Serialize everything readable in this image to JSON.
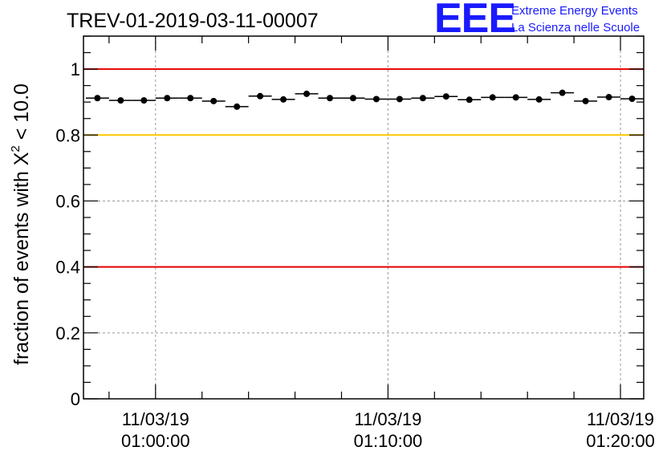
{
  "chart_data": {
    "type": "scatter",
    "title": "TREV-01-2019-03-11-00007",
    "ylabel_prefix": "fraction of events with ",
    "ylabel_chi": "X",
    "ylabel_sup": "2",
    "ylabel_suffix": " < 10.0",
    "xlabel": "",
    "ylim": [
      0,
      1.1
    ],
    "xlim_minutes": [
      -3.1,
      21.0
    ],
    "y_ticks": [
      {
        "value": 0,
        "label": "0"
      },
      {
        "value": 0.2,
        "label": "0.2"
      },
      {
        "value": 0.4,
        "label": "0.4"
      },
      {
        "value": 0.6,
        "label": "0.6"
      },
      {
        "value": 0.8,
        "label": "0.8"
      },
      {
        "value": 1,
        "label": "1"
      }
    ],
    "x_ticks": [
      {
        "minutes": 0,
        "date": "11/03/19",
        "time": "01:00:00"
      },
      {
        "minutes": 10,
        "date": "11/03/19",
        "time": "01:10:00"
      },
      {
        "minutes": 20,
        "date": "11/03/19",
        "time": "01:20:00"
      }
    ],
    "reference_lines": [
      {
        "value": 1.0,
        "color": "#e60000"
      },
      {
        "value": 0.8,
        "color": "#ffc800"
      },
      {
        "value": 0.4,
        "color": "#e60000"
      }
    ],
    "bin_width_minutes": 1.0,
    "series": [
      {
        "name": "fraction",
        "marker_color": "#000000",
        "x_minutes": [
          -2.5,
          -1.5,
          -0.5,
          0.5,
          1.5,
          2.5,
          3.5,
          4.5,
          5.5,
          6.5,
          7.5,
          8.5,
          9.5,
          10.5,
          11.5,
          12.5,
          13.5,
          14.5,
          15.5,
          16.5,
          17.5,
          18.5,
          19.5,
          20.5
        ],
        "values": [
          0.912,
          0.905,
          0.905,
          0.912,
          0.912,
          0.903,
          0.886,
          0.918,
          0.908,
          0.925,
          0.912,
          0.912,
          0.909,
          0.909,
          0.912,
          0.917,
          0.907,
          0.914,
          0.914,
          0.908,
          0.928,
          0.903,
          0.915,
          0.91
        ]
      }
    ]
  },
  "logo": {
    "mark": "EEE",
    "line1": "Extreme Energy Events",
    "line2": "La Scienza nelle Scuole"
  }
}
